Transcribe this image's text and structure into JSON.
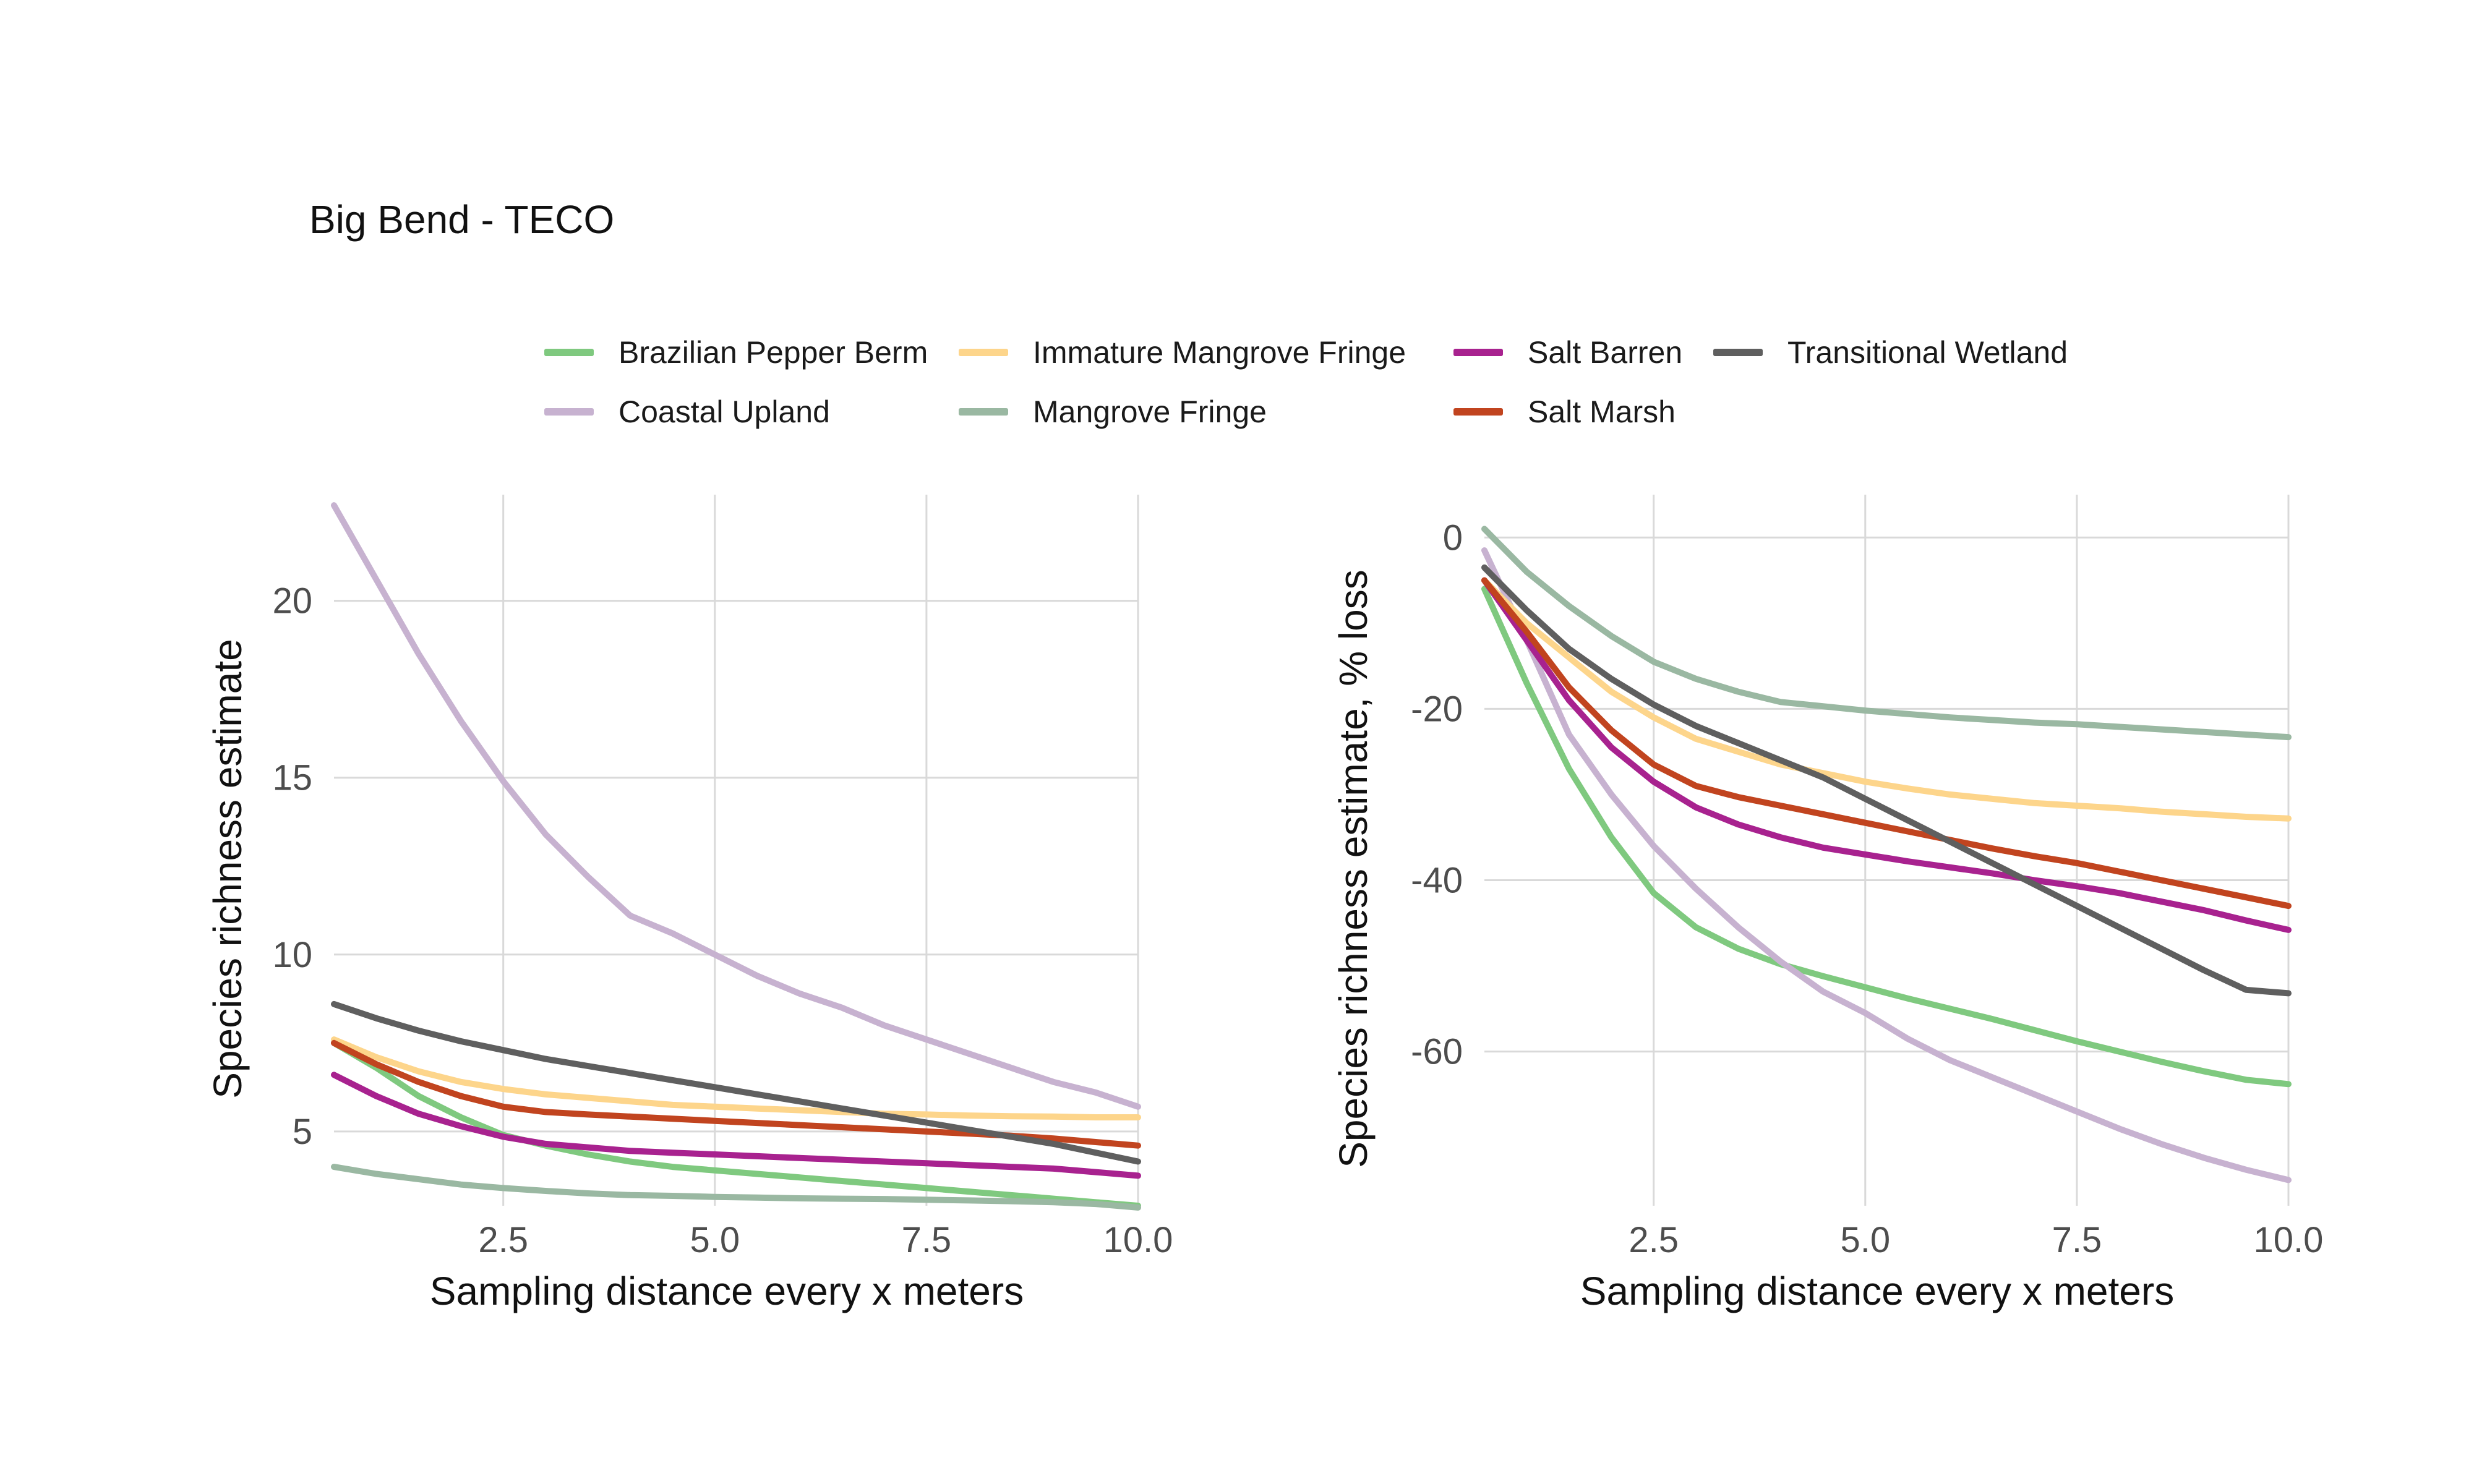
{
  "title": "Big Bend - TECO",
  "legend": {
    "items": [
      {
        "name": "Brazilian Pepper Berm",
        "color": "#7fc97f"
      },
      {
        "name": "Coastal Upland",
        "color": "#c7b2d0"
      },
      {
        "name": "Immature Mangrove Fringe",
        "color": "#fdd58b"
      },
      {
        "name": "Mangrove Fringe",
        "color": "#9ab8a2"
      },
      {
        "name": "Salt Barren",
        "color": "#a8228f"
      },
      {
        "name": "Salt Marsh",
        "color": "#c1441f"
      },
      {
        "name": "Transitional Wetland",
        "color": "#5f5f5f"
      }
    ]
  },
  "chart_data": [
    {
      "type": "line",
      "title": "",
      "xlabel": "Sampling distance every x meters",
      "ylabel": "Species richness estimate",
      "xlim": [
        0.5,
        10.0
      ],
      "ylim": [
        2.9,
        23.0
      ],
      "xticks": [
        "2.5",
        "5.0",
        "7.5",
        "10.0"
      ],
      "xtick_values": [
        2.5,
        5.0,
        7.5,
        10.0
      ],
      "yticks": [
        "5",
        "10",
        "15",
        "20"
      ],
      "ytick_values": [
        5,
        10,
        15,
        20
      ],
      "grid": true,
      "x": [
        0.5,
        1,
        1.5,
        2,
        2.5,
        3,
        3.5,
        4,
        4.5,
        5,
        5.5,
        6,
        6.5,
        7,
        7.5,
        8,
        8.5,
        9,
        9.5,
        10
      ],
      "series": [
        {
          "name": "Brazilian Pepper Berm",
          "values": [
            7.5,
            6.8,
            6.0,
            5.4,
            4.9,
            4.6,
            4.35,
            4.15,
            4.0,
            3.9,
            3.8,
            3.7,
            3.6,
            3.5,
            3.4,
            3.3,
            3.2,
            3.1,
            3.0,
            2.9
          ]
        },
        {
          "name": "Coastal Upland",
          "values": [
            22.7,
            20.6,
            18.5,
            16.6,
            14.9,
            13.4,
            12.2,
            11.1,
            10.6,
            10.0,
            9.4,
            8.9,
            8.5,
            8.0,
            7.6,
            7.2,
            6.8,
            6.4,
            6.1,
            5.7
          ]
        },
        {
          "name": "Immature Mangrove Fringe",
          "values": [
            7.6,
            7.1,
            6.7,
            6.4,
            6.2,
            6.05,
            5.95,
            5.85,
            5.75,
            5.7,
            5.65,
            5.6,
            5.55,
            5.5,
            5.48,
            5.45,
            5.43,
            5.42,
            5.4,
            5.4
          ]
        },
        {
          "name": "Mangrove Fringe",
          "values": [
            4.0,
            3.8,
            3.65,
            3.5,
            3.4,
            3.32,
            3.25,
            3.2,
            3.18,
            3.15,
            3.13,
            3.11,
            3.1,
            3.09,
            3.07,
            3.05,
            3.03,
            3.0,
            2.95,
            2.85
          ]
        },
        {
          "name": "Salt Barren",
          "values": [
            6.6,
            6.0,
            5.5,
            5.15,
            4.85,
            4.65,
            4.55,
            4.45,
            4.4,
            4.35,
            4.3,
            4.25,
            4.2,
            4.15,
            4.1,
            4.05,
            4.0,
            3.95,
            3.85,
            3.75
          ]
        },
        {
          "name": "Salt Marsh",
          "values": [
            7.5,
            6.9,
            6.4,
            6.0,
            5.7,
            5.55,
            5.48,
            5.42,
            5.36,
            5.3,
            5.24,
            5.18,
            5.12,
            5.06,
            5.0,
            4.94,
            4.88,
            4.8,
            4.7,
            4.6
          ]
        },
        {
          "name": "Transitional Wetland",
          "values": [
            8.6,
            8.2,
            7.85,
            7.55,
            7.3,
            7.05,
            6.85,
            6.65,
            6.45,
            6.25,
            6.05,
            5.85,
            5.65,
            5.45,
            5.25,
            5.05,
            4.85,
            4.65,
            4.4,
            4.15
          ]
        }
      ]
    },
    {
      "type": "line",
      "title": "",
      "xlabel": "Sampling distance every x meters",
      "ylabel": "Species richness estimate, % loss",
      "xlim": [
        0.5,
        10.0
      ],
      "ylim": [
        -78.0,
        5.0
      ],
      "xticks": [
        "2.5",
        "5.0",
        "7.5",
        "10.0"
      ],
      "xtick_values": [
        2.5,
        5.0,
        7.5,
        10.0
      ],
      "yticks": [
        "0",
        "-20",
        "-40",
        "-60"
      ],
      "ytick_values": [
        0,
        -20,
        -40,
        -60
      ],
      "grid": true,
      "x": [
        0.5,
        1,
        1.5,
        2,
        2.5,
        3,
        3.5,
        4,
        4.5,
        5,
        5.5,
        6,
        6.5,
        7,
        7.5,
        8,
        8.5,
        9,
        9.5,
        10
      ],
      "series": [
        {
          "name": "Brazilian Pepper Berm",
          "values": [
            -6,
            -17,
            -27,
            -35,
            -41.5,
            -45.5,
            -48,
            -49.8,
            -51.2,
            -52.5,
            -53.8,
            -55,
            -56.2,
            -57.5,
            -58.8,
            -60,
            -61.2,
            -62.3,
            -63.3,
            -63.8
          ]
        },
        {
          "name": "Coastal Upland",
          "values": [
            -1.5,
            -12,
            -23,
            -30,
            -36,
            -41,
            -45.5,
            -49.5,
            -53,
            -55.5,
            -58.5,
            -61,
            -63,
            -65,
            -67,
            -69,
            -70.8,
            -72.4,
            -73.8,
            -75
          ]
        },
        {
          "name": "Immature Mangrove Fringe",
          "values": [
            -5,
            -10,
            -14,
            -18,
            -21,
            -23.5,
            -25,
            -26.5,
            -27.5,
            -28.5,
            -29.3,
            -30,
            -30.5,
            -31,
            -31.3,
            -31.6,
            -32,
            -32.3,
            -32.6,
            -32.8
          ]
        },
        {
          "name": "Mangrove Fringe",
          "values": [
            1,
            -4,
            -8,
            -11.5,
            -14.5,
            -16.5,
            -18,
            -19.2,
            -19.7,
            -20.2,
            -20.6,
            -21,
            -21.3,
            -21.6,
            -21.8,
            -22.1,
            -22.4,
            -22.7,
            -23,
            -23.3
          ]
        },
        {
          "name": "Salt Barren",
          "values": [
            -5,
            -12,
            -19,
            -24.5,
            -28.5,
            -31.5,
            -33.5,
            -35,
            -36.2,
            -37,
            -37.8,
            -38.5,
            -39.2,
            -40,
            -40.7,
            -41.5,
            -42.5,
            -43.5,
            -44.7,
            -45.8
          ]
        },
        {
          "name": "Salt Marsh",
          "values": [
            -5,
            -11,
            -17.5,
            -22.5,
            -26.5,
            -29,
            -30.3,
            -31.3,
            -32.3,
            -33.3,
            -34.3,
            -35.3,
            -36.3,
            -37.2,
            -38,
            -39,
            -40,
            -41,
            -42,
            -43
          ]
        },
        {
          "name": "Transitional Wetland",
          "values": [
            -3.5,
            -8.5,
            -13,
            -16.5,
            -19.5,
            -22,
            -24,
            -26,
            -28,
            -30.5,
            -33,
            -35.5,
            -38,
            -40.5,
            -43,
            -45.5,
            -48,
            -50.5,
            -52.8,
            -53.2
          ]
        }
      ]
    }
  ]
}
